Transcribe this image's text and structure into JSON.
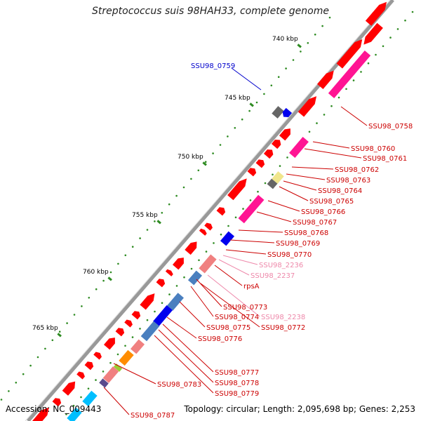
{
  "title": "Streptococcus suis 98HAH33, complete genome",
  "accession": "Accession: NC_009443",
  "summary": "Topology: circular; Length: 2,095,698 bp; Genes: 2,253",
  "colors": {
    "forward": "#ff0000",
    "reverse": "#ff0000",
    "cog_pink": "#ff1493",
    "backbone": "#888888",
    "tick": "#2e8b22",
    "label_red": "#cc0000",
    "label_blue": "#0000cc",
    "label_pink": "#ee88aa"
  },
  "ticks": [
    {
      "label": "740 kbp"
    },
    {
      "label": "745 kbp"
    },
    {
      "label": "750 kbp"
    },
    {
      "label": "755 kbp"
    },
    {
      "label": "760 kbp"
    },
    {
      "label": "765 kbp"
    }
  ],
  "labels": [
    {
      "text": "SSU98_0759",
      "color": "#0000cc"
    },
    {
      "text": "SSU98_0758",
      "color": "#cc0000"
    },
    {
      "text": "SSU98_0760",
      "color": "#cc0000"
    },
    {
      "text": "SSU98_0761",
      "color": "#cc0000"
    },
    {
      "text": "SSU98_0762",
      "color": "#cc0000"
    },
    {
      "text": "SSU98_0763",
      "color": "#cc0000"
    },
    {
      "text": "SSU98_0764",
      "color": "#cc0000"
    },
    {
      "text": "SSU98_0765",
      "color": "#cc0000"
    },
    {
      "text": "SSU98_0766",
      "color": "#cc0000"
    },
    {
      "text": "SSU98_0767",
      "color": "#cc0000"
    },
    {
      "text": "SSU98_0768",
      "color": "#cc0000"
    },
    {
      "text": "SSU98_0769",
      "color": "#cc0000"
    },
    {
      "text": "SSU98_0770",
      "color": "#cc0000"
    },
    {
      "text": "SSU98_2236",
      "color": "#ee88aa"
    },
    {
      "text": "SSU98_2237",
      "color": "#ee88aa"
    },
    {
      "text": "rpsA",
      "color": "#cc0000"
    },
    {
      "text": "SSU98_0773",
      "color": "#cc0000"
    },
    {
      "text": "SSU98_2238",
      "color": "#ee88aa"
    },
    {
      "text": "SSU98_0774",
      "color": "#cc0000"
    },
    {
      "text": "SSU98_0772",
      "color": "#cc0000"
    },
    {
      "text": "SSU98_0775",
      "color": "#cc0000"
    },
    {
      "text": "SSU98_0776",
      "color": "#cc0000"
    },
    {
      "text": "SSU98_0777",
      "color": "#cc0000"
    },
    {
      "text": "SSU98_0778",
      "color": "#cc0000"
    },
    {
      "text": "SSU98_0779",
      "color": "#cc0000"
    },
    {
      "text": "SSU98_0783",
      "color": "#cc0000"
    },
    {
      "text": "SSU98_0787",
      "color": "#cc0000"
    }
  ]
}
